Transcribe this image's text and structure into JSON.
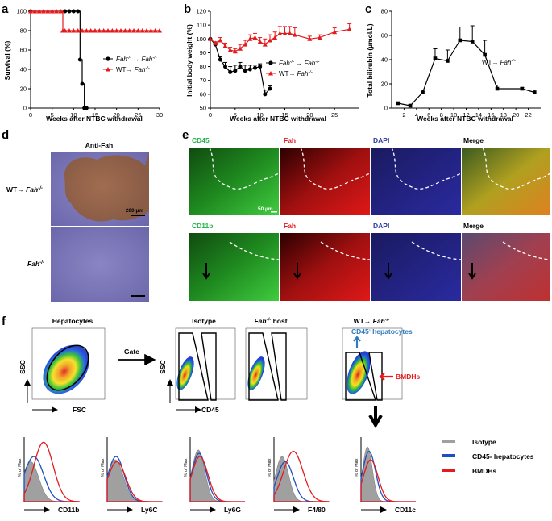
{
  "panels": {
    "a": "a",
    "b": "b",
    "c": "c",
    "d": "d",
    "e": "e",
    "f": "f"
  },
  "panel_a": {
    "ylabel": "Survival (%)",
    "xlabel": "Weeks after NTBC withdrawal",
    "legend": [
      {
        "base": "Fah",
        "sup1": "-/-",
        "arrow": " → ",
        "base2": "Fah",
        "sup2": "-/-",
        "color": "#000000"
      },
      {
        "base": "WT",
        "sup1": "",
        "arrow": "→ ",
        "base2": "Fah",
        "sup2": "-/-",
        "color": "#e41a1c"
      }
    ]
  },
  "panel_b": {
    "ylabel": "Initial body weight (%)",
    "xlabel": "Weeks after NTBC withdrawal",
    "legend": [
      {
        "base": "Fah",
        "sup1": "-/-",
        "arrow": " → ",
        "base2": "Fah",
        "sup2": "-/-",
        "color": "#000000"
      },
      {
        "base": "WT",
        "sup1": "",
        "arrow": "→ ",
        "base2": "Fah",
        "sup2": "-/-",
        "color": "#e41a1c"
      }
    ]
  },
  "panel_c": {
    "ylabel": "Total bilirubin (µmol/L)",
    "xlabel": "Weeks after NTBC withdrawal",
    "legend": {
      "base": "WT",
      "arrow": "→ ",
      "base2": "Fah",
      "sup2": "-/-"
    }
  },
  "chart_data": [
    {
      "type": "line",
      "id": "a",
      "title": "",
      "xlabel": "Weeks after NTBC withdrawal",
      "ylabel": "Survival (%)",
      "xlim": [
        0,
        30
      ],
      "ylim": [
        0,
        100
      ],
      "xticks": [
        0,
        5,
        10,
        15,
        20,
        25,
        30
      ],
      "yticks": [
        0,
        20,
        40,
        60,
        80,
        100
      ],
      "series": [
        {
          "name": "Fah-/- → Fah-/-",
          "color": "#000000",
          "marker": "circle",
          "step": true,
          "x": [
            0,
            8,
            9,
            10,
            11,
            11.5,
            12,
            12.5,
            13
          ],
          "y": [
            100,
            100,
            100,
            100,
            100,
            50,
            25,
            0,
            0
          ]
        },
        {
          "name": "WT → Fah-/-",
          "color": "#e41a1c",
          "marker": "triangle",
          "step": true,
          "x": [
            0,
            1,
            2,
            3,
            4,
            5,
            6,
            7,
            7.5,
            8,
            9,
            10,
            11,
            12,
            13,
            14,
            15,
            16,
            17,
            18,
            19,
            20,
            21,
            22,
            23,
            24,
            25,
            26,
            27,
            28,
            29,
            30
          ],
          "y": [
            100,
            100,
            100,
            100,
            100,
            100,
            100,
            100,
            80,
            80,
            80,
            80,
            80,
            80,
            80,
            80,
            80,
            80,
            80,
            80,
            80,
            80,
            80,
            80,
            80,
            80,
            80,
            80,
            80,
            80,
            80,
            80
          ]
        }
      ]
    },
    {
      "type": "line",
      "id": "b",
      "title": "",
      "xlabel": "Weeks after NTBC withdrawal",
      "ylabel": "Initial body weight (%)",
      "xlim": [
        0,
        30
      ],
      "ylim": [
        50,
        120
      ],
      "xticks": [
        0,
        5,
        10,
        15,
        20,
        25
      ],
      "yticks": [
        50,
        60,
        70,
        80,
        90,
        100,
        110,
        120
      ],
      "series": [
        {
          "name": "Fah-/- → Fah-/-",
          "color": "#000000",
          "marker": "circle",
          "x": [
            0,
            1,
            2,
            3,
            4,
            5,
            6,
            7,
            8,
            9,
            10,
            11,
            12
          ],
          "y": [
            100,
            96,
            85,
            80,
            76,
            77,
            80,
            77,
            78,
            79,
            80,
            60,
            64
          ],
          "err": [
            0,
            1,
            2,
            3,
            4,
            4,
            3,
            4,
            3,
            2,
            2,
            3,
            2
          ]
        },
        {
          "name": "WT → Fah-/-",
          "color": "#e41a1c",
          "marker": "triangle",
          "x": [
            0,
            1,
            2,
            3,
            4,
            5,
            6,
            7,
            8,
            9,
            10,
            11,
            12,
            13,
            14,
            15,
            16,
            17,
            20,
            22,
            25,
            28
          ],
          "y": [
            100,
            97,
            99,
            95,
            92,
            91,
            93,
            96,
            100,
            101,
            98,
            96,
            99,
            101,
            104,
            104,
            104,
            103,
            100,
            101,
            105,
            107
          ],
          "err": [
            0,
            1,
            2,
            2,
            2,
            2,
            3,
            3,
            3,
            3,
            3,
            4,
            4,
            4,
            5,
            5,
            5,
            5,
            2,
            2,
            3,
            4
          ]
        }
      ]
    },
    {
      "type": "line",
      "id": "c",
      "title": "",
      "xlabel": "Weeks after NTBC withdrawal",
      "ylabel": "Total bilirubin (µmol/L)",
      "xlim": [
        0,
        24
      ],
      "ylim": [
        0,
        80
      ],
      "xticks": [
        2,
        4,
        6,
        8,
        10,
        12,
        14,
        16,
        18,
        20,
        22
      ],
      "yticks": [
        0,
        20,
        40,
        60,
        80
      ],
      "series": [
        {
          "name": "WT → Fah-/-",
          "color": "#000000",
          "marker": "square",
          "x": [
            1,
            3,
            5,
            7,
            9,
            11,
            13,
            15,
            17,
            21,
            23
          ],
          "y": [
            4,
            2,
            13,
            41,
            39,
            56,
            55,
            44,
            16,
            16,
            13
          ],
          "err": [
            1,
            1,
            2,
            8,
            9,
            11,
            13,
            12,
            3,
            1,
            2
          ]
        }
      ]
    },
    {
      "type": "histogram",
      "id": "f-bottom",
      "ylabel": "% of Max",
      "legend": [
        "Isotype",
        "CD45- hepatocytes",
        "BMDHs"
      ],
      "colors": [
        "#a0a0a0",
        "#1f4fbf",
        "#e41a1c"
      ],
      "markers": [
        "CD11b",
        "Ly6C",
        "Ly6G",
        "F4/80",
        "CD11c"
      ]
    }
  ],
  "panel_d": {
    "title": "Anti-Fah",
    "row1": {
      "base": "WT→ ",
      "base2": "Fah",
      "sup": "-/-"
    },
    "row2": {
      "base2": "Fah",
      "sup": "-/-"
    },
    "scalebar": "200 µm"
  },
  "panel_e": {
    "row1": [
      "CD45",
      "Fah",
      "DAPI",
      "Merge"
    ],
    "row2": [
      "CD11b",
      "Fah",
      "DAPI",
      "Merge"
    ],
    "label_colors": [
      "#21b24b",
      "#e41a1c",
      "#2b3c9e",
      "#000000"
    ],
    "scalebar": "50 µm"
  },
  "panel_f": {
    "hepatocytes": "Hepatocytes",
    "gate": "Gate",
    "isotype": "Isotype",
    "host": {
      "base": "Fah",
      "sup": "-/-",
      "rest": " host"
    },
    "wt": {
      "base": "WT→ ",
      "base2": "Fah",
      "sup": "-/-"
    },
    "ssc": "SSC",
    "fsc": "FSC",
    "cd45": "CD45",
    "cd45neg": "CD45",
    "cd45neg_sup": "-",
    "cd45neg_rest": " hepatocytes",
    "bmdhs": "BMDHs"
  }
}
